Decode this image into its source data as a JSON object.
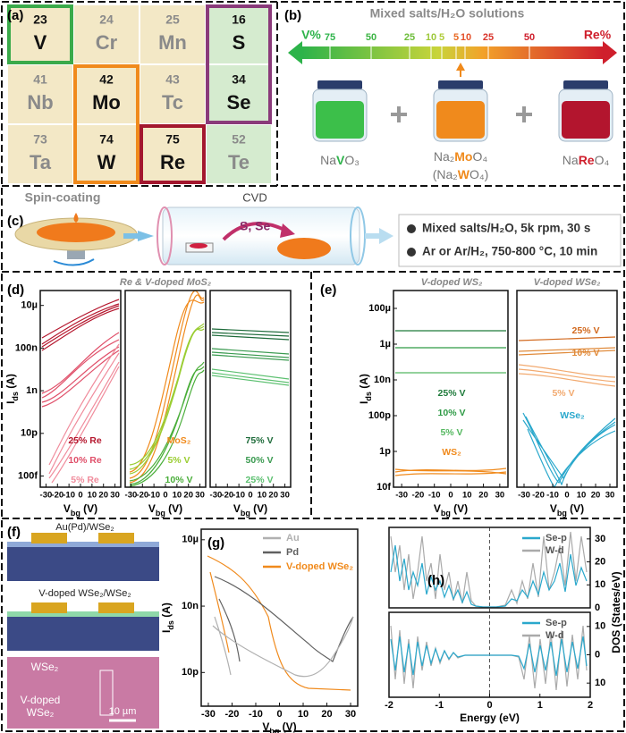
{
  "panels": {
    "a": {
      "label": "(a)",
      "elements": [
        {
          "number": 23,
          "symbol": "V"
        },
        {
          "number": 24,
          "symbol": "Cr"
        },
        {
          "number": 25,
          "symbol": "Mn"
        },
        {
          "number": 16,
          "symbol": "S"
        },
        {
          "number": 41,
          "symbol": "Nb"
        },
        {
          "number": 42,
          "symbol": "Mo"
        },
        {
          "number": 43,
          "symbol": "Tc"
        },
        {
          "number": 34,
          "symbol": "Se"
        },
        {
          "number": 73,
          "symbol": "Ta"
        },
        {
          "number": 74,
          "symbol": "W"
        },
        {
          "number": 75,
          "symbol": "Re"
        },
        {
          "number": 52,
          "symbol": "Te"
        }
      ]
    },
    "b": {
      "label": "(b)",
      "title": "Mixed salts/H₂O solutions",
      "left": "V%",
      "right": "Re%",
      "scale_left": [
        75,
        50,
        25,
        10,
        5
      ],
      "scale_right": [
        5,
        10,
        25,
        50
      ],
      "formulas": [
        [
          "Na",
          "V",
          "O₃"
        ],
        [
          "Na₂",
          "Mo",
          "O₄"
        ],
        [
          "(Na₂",
          "W",
          "O₄)"
        ],
        [
          "Na",
          "Re",
          "O₄"
        ]
      ]
    },
    "c": {
      "label": "(c)",
      "spin": "Spin-coating",
      "cvd": "CVD",
      "gases": "S, Se",
      "steps": [
        "Mixed salts/H₂O, 5k rpm, 30 s",
        "Ar or Ar/H₂, 750-800 °C, 10 min"
      ]
    },
    "f": {
      "label": "(f)",
      "top": "Au(Pd)/WSe₂",
      "middle": "V-doped WSe₂/WSe₂",
      "photo_labels": [
        "WSe₂",
        "V-doped",
        "WSe₂"
      ],
      "scale_bar": "10 µm"
    }
  },
  "chart_data": [
    {
      "type": "line",
      "panel": "(d)",
      "title": "Re & V-doped MoS₂",
      "log_y": true,
      "xlim": [
        -35,
        35
      ],
      "xticks": [
        -30,
        -20,
        -10,
        0,
        10,
        20,
        30
      ],
      "ylim": [
        3e-14,
        5e-05
      ],
      "yticks": [
        {
          "value": 1e-05,
          "label": "10µ"
        },
        {
          "value": 1e-07,
          "label": "100n"
        },
        {
          "value": 1e-09,
          "label": "1n"
        },
        {
          "value": 1e-11,
          "label": "10p"
        },
        {
          "value": 1e-13,
          "label": "100f"
        }
      ],
      "x_label": [
        "V",
        "bg",
        " (V)"
      ],
      "y_label": [
        "I",
        "ds",
        " (A)"
      ],
      "series": [
        {
          "name": "25% Re",
          "color": "#b5172e"
        },
        {
          "name": "10% Re",
          "color": "#e0506a"
        },
        {
          "name": "5% Re",
          "color": "#f08c9c"
        }
      ]
    },
    {
      "type": "line",
      "log_y": true,
      "xlim": [
        -35,
        35
      ],
      "xticks": [
        -30,
        -20,
        -10,
        0,
        10,
        20,
        30
      ],
      "ylim": [
        3e-14,
        5e-05
      ],
      "x_label": [
        "V",
        "bg",
        " (V)"
      ],
      "series": [
        {
          "name": "MoS₂",
          "color": "#f08a1c"
        },
        {
          "name": "5% V",
          "color": "#9acd32"
        },
        {
          "name": "10% V",
          "color": "#4aae3a"
        }
      ]
    },
    {
      "type": "line",
      "log_y": true,
      "xlim": [
        -35,
        35
      ],
      "xticks": [
        -30,
        -20,
        -10,
        0,
        10,
        20,
        30
      ],
      "ylim": [
        3e-14,
        5e-05
      ],
      "x_label": [
        "V",
        "bg",
        " (V)"
      ],
      "series": [
        {
          "name": "75% V",
          "color": "#1e6b3a"
        },
        {
          "name": "50% V",
          "color": "#3a9a50"
        },
        {
          "name": "25% V",
          "color": "#5cc070"
        }
      ]
    },
    {
      "type": "line",
      "panel": "(e)",
      "title": "V-doped WS₂",
      "log_y": true,
      "xlim": [
        -35,
        35
      ],
      "xticks": [
        -30,
        -20,
        -10,
        0,
        10,
        20,
        30
      ],
      "ylim": [
        1e-14,
        0.001
      ],
      "yticks": [
        {
          "value": 0.0001,
          "label": "100µ"
        },
        {
          "value": 1e-06,
          "label": "1µ"
        },
        {
          "value": 1e-08,
          "label": "10n"
        },
        {
          "value": 1e-10,
          "label": "100p"
        },
        {
          "value": 1e-12,
          "label": "1p"
        },
        {
          "value": 1e-14,
          "label": "10f"
        }
      ],
      "x_label": [
        "V",
        "bg",
        " (V)"
      ],
      "y_label": [
        "I",
        "ds",
        " (A)"
      ],
      "series": [
        {
          "name": "25% V",
          "color": "#1e7a3a"
        },
        {
          "name": "10% V",
          "color": "#2e9a45"
        },
        {
          "name": "5% V",
          "color": "#55b860"
        },
        {
          "name": "WS₂",
          "color": "#f08a1c"
        }
      ]
    },
    {
      "type": "line",
      "title": "V-doped WSe₂",
      "log_y": true,
      "xlim": [
        -35,
        35
      ],
      "xticks": [
        -30,
        -20,
        -10,
        0,
        10,
        20,
        30
      ],
      "ylim": [
        1e-14,
        0.001
      ],
      "x_label": [
        "V",
        "bg",
        " (V)"
      ],
      "series": [
        {
          "name": "25% V",
          "color": "#d2691e"
        },
        {
          "name": "10% V",
          "color": "#e08a3a"
        },
        {
          "name": "5% V",
          "color": "#f2aa70"
        },
        {
          "name": "WSe₂",
          "color": "#2aa8cc"
        }
      ]
    },
    {
      "type": "line",
      "panel": "(g)",
      "log_y": true,
      "xlim": [
        -33,
        33
      ],
      "xticks": [
        -30,
        -20,
        -10,
        0,
        10,
        20,
        30
      ],
      "ylim": [
        3e-13,
        3e-05
      ],
      "yticks": [
        {
          "value": 1e-05,
          "label": "10µ"
        },
        {
          "value": 1e-08,
          "label": "10n"
        },
        {
          "value": 1e-11,
          "label": "10p"
        }
      ],
      "x_label": [
        "V",
        "bg",
        " (V)"
      ],
      "y_label": [
        "I",
        "ds",
        " (A)"
      ],
      "series": [
        {
          "name": "Au",
          "color": "#b0b0b0"
        },
        {
          "name": "Pd",
          "color": "#606060"
        },
        {
          "name": "V-doped WSe₂",
          "color": "#f08a1c"
        }
      ]
    },
    {
      "type": "line",
      "panel": "(h)",
      "y_side": "right",
      "xlim": [
        -2,
        2
      ],
      "ylim": [
        0,
        35
      ],
      "yticks": [
        0,
        10,
        20,
        30
      ],
      "y_label": [
        "DOS (States/eV)"
      ],
      "series": [
        {
          "name": "Se-p",
          "color": "#2aa8cc"
        },
        {
          "name": "W-d",
          "color": "#aaaaaa"
        }
      ]
    },
    {
      "type": "line",
      "y_side": "right",
      "xlim": [
        -2,
        2
      ],
      "xticks": [
        -2,
        -1,
        0,
        1,
        2
      ],
      "ylim": [
        -15,
        15
      ],
      "yticks": [
        10,
        0,
        {
          "value": -10,
          "label": "10"
        }
      ],
      "x_label": [
        "Energy (eV)"
      ],
      "series": [
        {
          "name": "Se-p",
          "color": "#2aa8cc"
        },
        {
          "name": "W-d",
          "color": "#aaaaaa"
        }
      ]
    }
  ]
}
